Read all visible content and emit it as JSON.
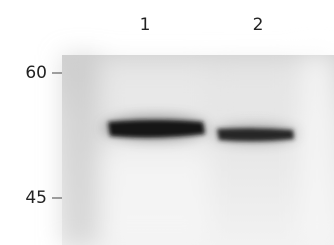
{
  "lanes": [
    "1",
    "2"
  ],
  "markers": [
    "60",
    "45"
  ]
}
